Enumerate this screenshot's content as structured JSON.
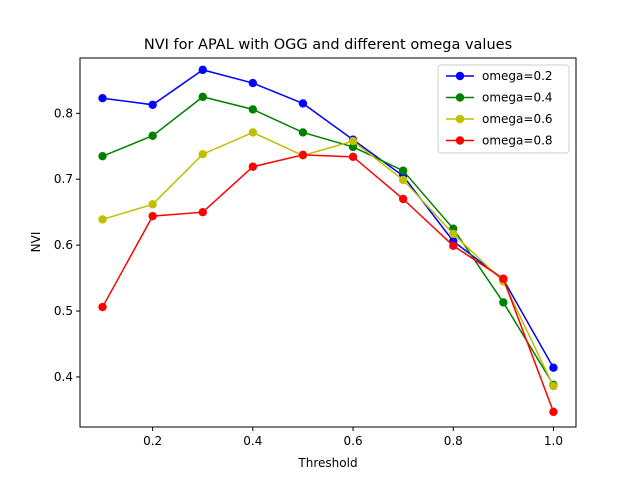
{
  "chart_data": {
    "type": "line",
    "title": "NVI for APAL with OGG and different omega values",
    "xlabel": "Threshold",
    "ylabel": "NVI",
    "x": [
      0.1,
      0.2,
      0.3,
      0.4,
      0.5,
      0.6,
      0.7,
      0.8,
      0.9,
      1.0
    ],
    "xlim": [
      0.055,
      1.045
    ],
    "ylim": [
      0.324,
      0.884
    ],
    "xticks": [
      "0.2",
      "0.4",
      "0.6",
      "0.8",
      "1.0"
    ],
    "yticks": [
      "0.4",
      "0.5",
      "0.6",
      "0.7",
      "0.8"
    ],
    "legend_position": "top-right",
    "grid": false,
    "series": [
      {
        "name": "omega=0.2",
        "color": "#0000ff",
        "values": [
          0.823,
          0.813,
          0.866,
          0.846,
          0.815,
          0.76,
          0.705,
          0.606,
          0.548,
          0.414
        ]
      },
      {
        "name": "omega=0.4",
        "color": "#008000",
        "values": [
          0.735,
          0.766,
          0.825,
          0.806,
          0.771,
          0.749,
          0.713,
          0.625,
          0.513,
          0.388
        ]
      },
      {
        "name": "omega=0.6",
        "color": "#bfbf00",
        "values": [
          0.639,
          0.662,
          0.738,
          0.771,
          0.736,
          0.758,
          0.699,
          0.617,
          0.545,
          0.386
        ]
      },
      {
        "name": "omega=0.8",
        "color": "#ff0000",
        "values": [
          0.506,
          0.644,
          0.65,
          0.719,
          0.737,
          0.734,
          0.67,
          0.599,
          0.549,
          0.347
        ]
      }
    ]
  }
}
